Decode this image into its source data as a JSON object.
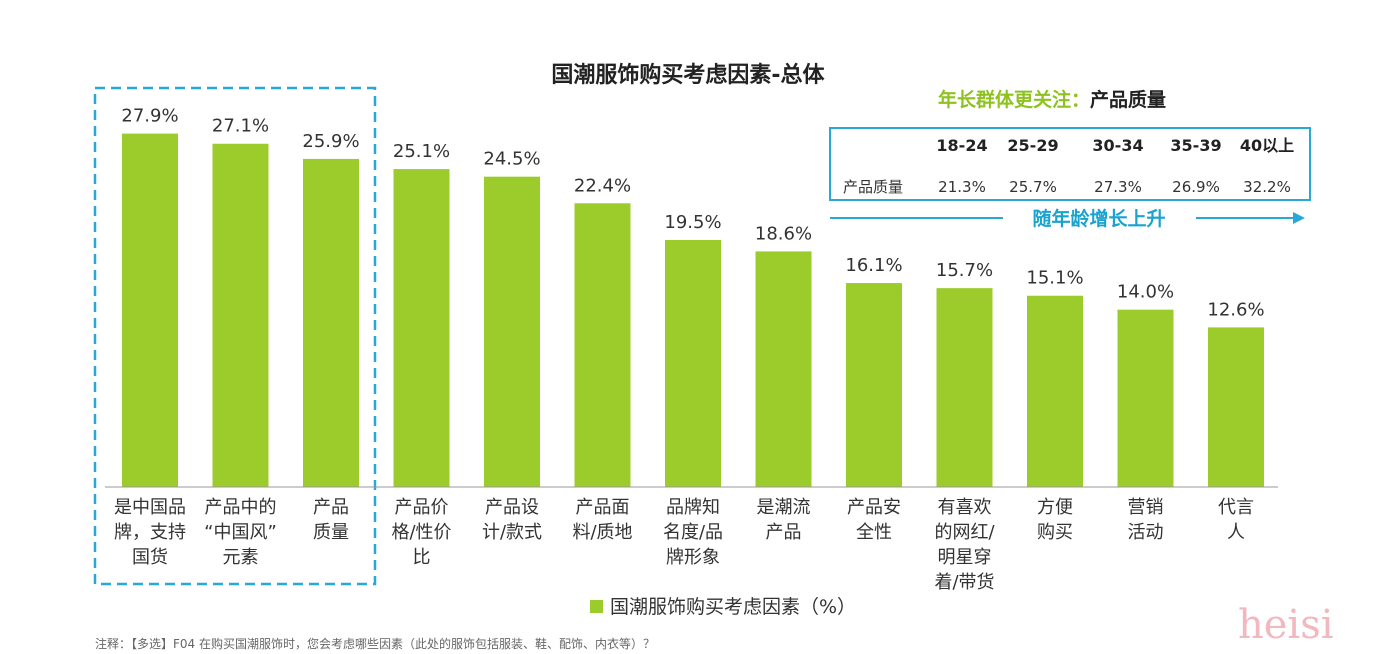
{
  "chart_data": {
    "type": "bar",
    "title": "国潮服饰购买考虑因素-总体",
    "categories": [
      [
        "是中国品",
        "牌，支持",
        "国货"
      ],
      [
        "产品中的",
        "“中国风”",
        "元素"
      ],
      [
        "产品",
        "质量"
      ],
      [
        "产品价",
        "格/性价",
        "比"
      ],
      [
        "产品设",
        "计/款式"
      ],
      [
        "产品面",
        "料/质地"
      ],
      [
        "品牌知",
        "名度/品",
        "牌形象"
      ],
      [
        "是潮流",
        "产品"
      ],
      [
        "产品安",
        "全性"
      ],
      [
        "有喜欢",
        "的网红/",
        "明星穿",
        "着/带货"
      ],
      [
        "方便",
        "购买"
      ],
      [
        "营销",
        "活动"
      ],
      [
        "代言",
        "人"
      ]
    ],
    "values": [
      27.9,
      27.1,
      25.9,
      25.1,
      24.5,
      22.4,
      19.5,
      18.6,
      16.1,
      15.7,
      15.1,
      14.0,
      12.6
    ],
    "value_labels": [
      "27.9%",
      "27.1%",
      "25.9%",
      "25.1%",
      "24.5%",
      "22.4%",
      "19.5%",
      "18.6%",
      "16.1%",
      "15.7%",
      "15.1%",
      "14.0%",
      "12.6%"
    ],
    "ylim": [
      0,
      30
    ],
    "highlighted_count": 3,
    "bar_color": "#9ccb2c",
    "legend": "国潮服饰购买考虑因素（%）",
    "legend_position": "bottom",
    "grid": false
  },
  "highlight": {
    "title_part1": "年长群体更关注：",
    "title_part2": "产品质量",
    "table": {
      "headers": [
        "18-24",
        "25-29",
        "30-34",
        "35-39",
        "40以上"
      ],
      "row_label": "产品质量",
      "values": [
        "21.3%",
        "25.7%",
        "27.3%",
        "26.9%",
        "32.2%"
      ]
    },
    "trend_text": "随年龄增长上升",
    "frame_color": "#29a8d6",
    "accent_color": "#8dc21f"
  },
  "note": "注释：【多选】F04 在购买国潮服饰时，您会考虑哪些因素（此处的服饰包括服装、鞋、配饰、内衣等）？",
  "watermark": "heisi"
}
